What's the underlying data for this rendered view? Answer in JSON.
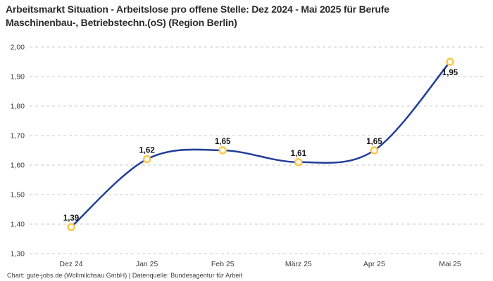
{
  "page": {
    "footer": "Chart: gute-jobs.de (Wollmilchsau GmbH) | Datenquelle: Bundesagentur für Arbeit"
  },
  "chart_data": {
    "type": "line",
    "title": "Arbeitsmarkt Situation - Arbeitslose pro offene Stelle: Dez 2024 - Mai 2025 für Berufe Maschinenbau-, Betriebstechn.(oS) (Region Berlin)",
    "categories": [
      "Dez 24",
      "Jan 25",
      "Feb 25",
      "März 25",
      "Apr 25",
      "Mai 25"
    ],
    "values": [
      1.39,
      1.62,
      1.65,
      1.61,
      1.65,
      1.95
    ],
    "point_labels": [
      "1,39",
      "1,62",
      "1,65",
      "1,61",
      "1,65",
      "1,95"
    ],
    "xlabel": "",
    "ylabel": "",
    "ylim": [
      1.3,
      2.0
    ],
    "y_ticks": [
      1.3,
      1.4,
      1.5,
      1.6,
      1.7,
      1.8,
      1.9,
      2.0
    ],
    "y_tick_labels": [
      "1,30",
      "1,40",
      "1,50",
      "1,60",
      "1,70",
      "1,80",
      "1,90",
      "2,00"
    ],
    "grid": "horizontal-dashed",
    "legend": "none",
    "decimal_format": "german-comma",
    "colors": {
      "line": "#1f3d99",
      "marker_stroke": "#fdc541",
      "marker_fill": "#ffffff",
      "grid": "#c9c9c9",
      "title": "#2b2b2b",
      "tick_text": "#3c3c3c",
      "point_label": "#141414",
      "background": "#ffffff"
    }
  }
}
